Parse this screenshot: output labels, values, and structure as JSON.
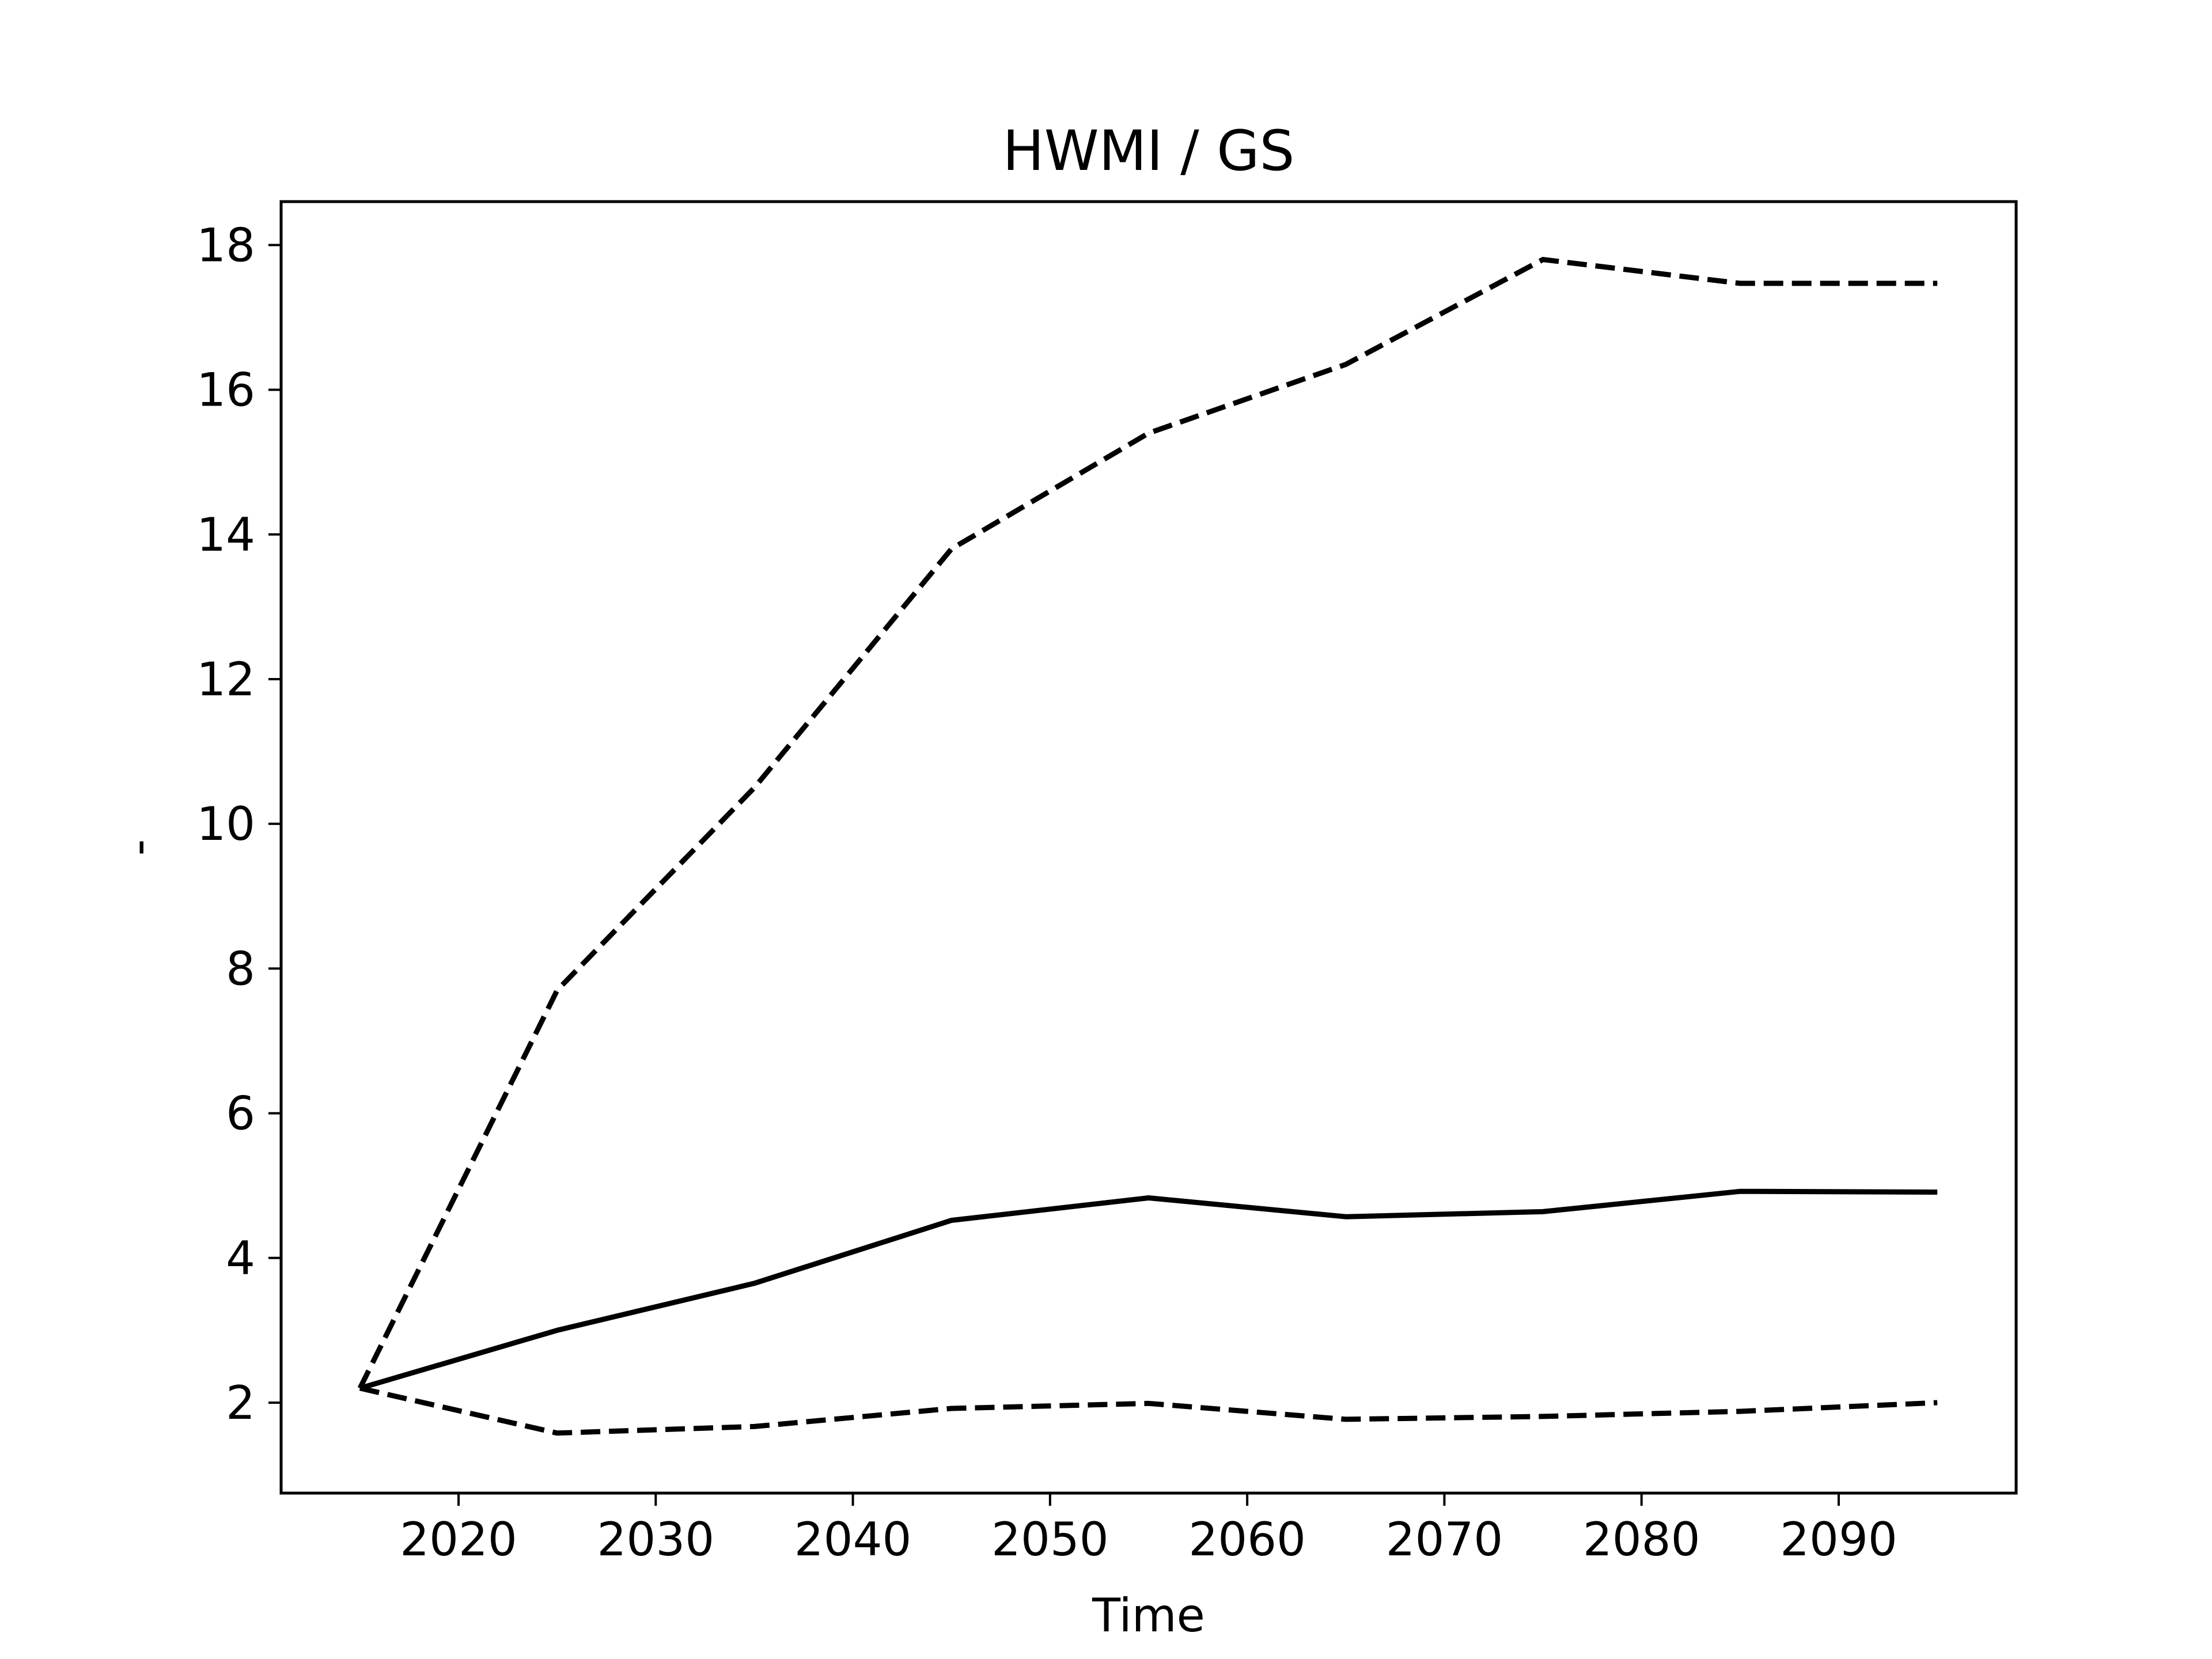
{
  "chart_data": {
    "type": "line",
    "title": "HWMI / GS",
    "xlabel": "Time",
    "ylabel": "-",
    "xlim": [
      2011,
      2099
    ],
    "ylim": [
      0.75,
      18.6
    ],
    "x_ticks": [
      2020,
      2030,
      2040,
      2050,
      2060,
      2070,
      2080,
      2090
    ],
    "y_ticks": [
      2,
      4,
      6,
      8,
      10,
      12,
      14,
      16,
      18
    ],
    "grid": false,
    "legend": "none",
    "x": [
      2015,
      2025,
      2035,
      2045,
      2055,
      2065,
      2075,
      2085,
      2095
    ],
    "series": [
      {
        "style": "solid",
        "color": "#000000",
        "values": [
          2.2,
          3.0,
          3.65,
          4.52,
          4.83,
          4.57,
          4.64,
          4.92,
          4.91
        ]
      },
      {
        "style": "dashed",
        "color": "#000000",
        "values": [
          2.2,
          7.7,
          10.5,
          13.8,
          15.4,
          16.35,
          17.8,
          17.47,
          17.47
        ]
      },
      {
        "style": "dashed",
        "color": "#000000",
        "values": [
          2.2,
          1.58,
          1.67,
          1.92,
          1.99,
          1.77,
          1.81,
          1.88,
          2.0
        ]
      }
    ]
  }
}
